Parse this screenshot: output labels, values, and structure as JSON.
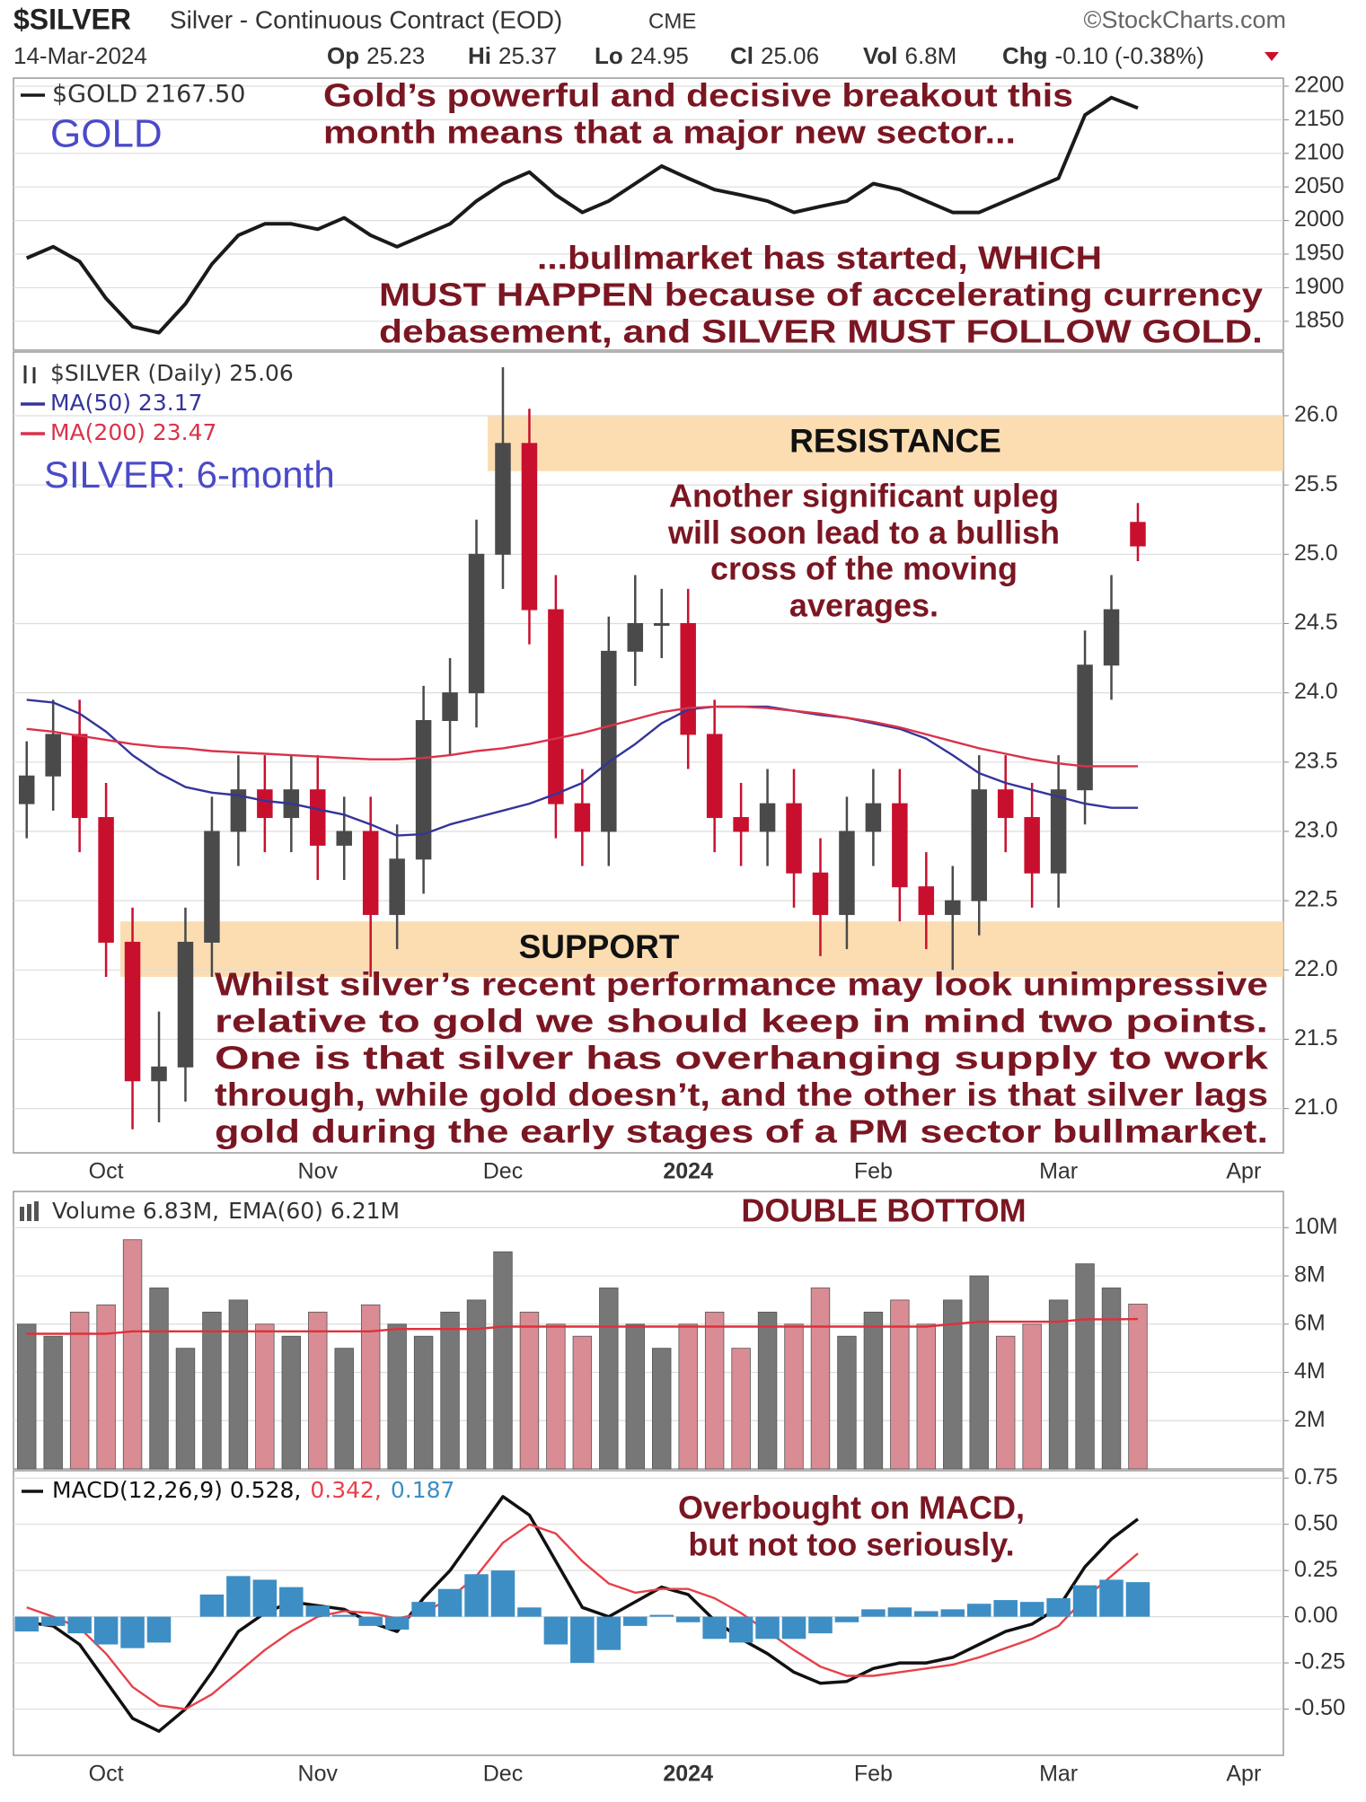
{
  "header": {
    "symbol": "$SILVER",
    "description": "Silver - Continuous Contract (EOD)",
    "exchange": "CME",
    "source": "©StockCharts.com",
    "date": "14-Mar-2024",
    "quote": [
      [
        "Op",
        "25.23"
      ],
      [
        "Hi",
        "25.37"
      ],
      [
        "Lo",
        "24.95"
      ],
      [
        "Cl",
        "25.06"
      ],
      [
        "Vol",
        "6.8M"
      ],
      [
        "Chg",
        "-0.10 (-0.38%)"
      ]
    ]
  },
  "chart_data": [
    {
      "type": "line",
      "title": "GOLD",
      "series": [
        {
          "name": "$GOLD 2167.50",
          "color": "#1a1a1a",
          "values": [
            1944,
            1961,
            1939,
            1884,
            1842,
            1833,
            1876,
            1935,
            1978,
            1995,
            1995,
            1987,
            2004,
            1978,
            1961,
            1978,
            1995,
            2029,
            2055,
            2072,
            2038,
            2012,
            2029,
            2055,
            2081,
            2063,
            2046,
            2038,
            2029,
            2012,
            2021,
            2029,
            2055,
            2046,
            2029,
            2012,
            2012,
            2029,
            2046,
            2063,
            2157,
            2183,
            2167.5,
            null,
            null,
            null,
            null,
            null
          ]
        }
      ],
      "ylim": [
        1807,
        2212
      ],
      "yticks": [
        1850,
        1900,
        1950,
        2000,
        2050,
        2100,
        2150,
        2200
      ],
      "grid": true,
      "annotations": [
        "Gold’s powerful and decisive breakout this",
        "month means that a major new sector...",
        "...bullmarket has started, WHICH",
        "MUST HAPPEN because of accelerating currency",
        "debasement, and SILVER MUST FOLLOW  GOLD."
      ]
    },
    {
      "type": "candlestick",
      "title": "SILVER: 6-month",
      "categories": [
        null,
        null,
        null,
        "Oct",
        null,
        null,
        null,
        null,
        null,
        null,
        null,
        "Nov",
        null,
        null,
        null,
        null,
        null,
        null,
        "Dec",
        null,
        null,
        null,
        null,
        null,
        null,
        "2024",
        null,
        null,
        null,
        null,
        null,
        null,
        "Feb",
        null,
        null,
        null,
        null,
        null,
        null,
        "Mar",
        null,
        null,
        null,
        null,
        null,
        null,
        "Apr",
        null
      ],
      "series": [
        {
          "name": "$SILVER (Daily) 25.06",
          "type": "candlestick",
          "up_color": "#4a4a4a",
          "down_color": "#c8102e",
          "open": [
            23.2,
            23.4,
            23.7,
            23.1,
            22.2,
            21.2,
            21.3,
            22.2,
            23.0,
            23.3,
            23.1,
            23.3,
            22.9,
            23.0,
            22.4,
            22.8,
            23.8,
            24.0,
            25.0,
            25.8,
            24.6,
            23.2,
            23.0,
            24.3,
            24.5,
            24.5,
            23.7,
            23.1,
            23.0,
            23.2,
            22.7,
            22.4,
            23.0,
            23.2,
            22.6,
            22.4,
            22.5,
            23.3,
            23.1,
            22.7,
            23.3,
            24.2,
            25.23,
            null,
            null,
            null,
            null,
            null
          ],
          "high": [
            23.65,
            23.95,
            23.95,
            23.35,
            22.45,
            21.7,
            22.45,
            23.25,
            23.55,
            23.55,
            23.55,
            23.55,
            23.25,
            23.25,
            23.05,
            24.05,
            24.25,
            25.25,
            26.35,
            26.05,
            24.85,
            23.45,
            24.55,
            24.85,
            24.75,
            24.75,
            23.95,
            23.35,
            23.45,
            23.45,
            22.95,
            23.25,
            23.45,
            23.45,
            22.85,
            22.75,
            23.55,
            23.55,
            23.35,
            23.55,
            24.45,
            24.85,
            25.37,
            null,
            null,
            null,
            null,
            null
          ],
          "low": [
            22.95,
            23.15,
            22.85,
            21.95,
            20.85,
            20.9,
            21.05,
            21.95,
            22.75,
            22.85,
            22.85,
            22.65,
            22.65,
            21.95,
            22.15,
            22.55,
            23.55,
            23.75,
            24.75,
            24.35,
            22.95,
            22.75,
            22.75,
            24.05,
            24.25,
            23.45,
            22.85,
            22.75,
            22.75,
            22.45,
            22.1,
            22.15,
            22.75,
            22.35,
            22.15,
            22.0,
            22.25,
            22.85,
            22.45,
            22.45,
            23.05,
            23.95,
            24.95,
            null,
            null,
            null,
            null,
            null
          ],
          "close": [
            23.4,
            23.7,
            23.1,
            22.2,
            21.2,
            21.3,
            22.2,
            23.0,
            23.3,
            23.1,
            23.3,
            22.9,
            23.0,
            22.4,
            22.8,
            23.8,
            24.0,
            25.0,
            25.8,
            24.6,
            23.2,
            23.0,
            24.3,
            24.5,
            24.5,
            23.7,
            23.1,
            23.0,
            23.2,
            22.7,
            22.4,
            23.0,
            23.2,
            22.6,
            22.4,
            22.5,
            23.3,
            23.1,
            22.7,
            23.3,
            24.2,
            24.6,
            25.06,
            null,
            null,
            null,
            null,
            null
          ]
        },
        {
          "name": "MA(50) 23.17",
          "type": "line",
          "color": "#34349a",
          "values": [
            23.95,
            23.93,
            23.85,
            23.72,
            23.55,
            23.42,
            23.32,
            23.28,
            23.26,
            23.22,
            23.2,
            23.16,
            23.12,
            23.05,
            22.97,
            22.98,
            23.05,
            23.1,
            23.15,
            23.2,
            23.27,
            23.35,
            23.5,
            23.63,
            23.78,
            23.88,
            23.9,
            23.9,
            23.9,
            23.87,
            23.84,
            23.82,
            23.78,
            23.74,
            23.67,
            23.55,
            23.42,
            23.35,
            23.3,
            23.25,
            23.2,
            23.17,
            23.17,
            null,
            null,
            null,
            null,
            null
          ]
        },
        {
          "name": "MA(200) 23.47",
          "type": "line",
          "color": "#d9334a",
          "values": [
            23.74,
            23.72,
            23.69,
            23.66,
            23.63,
            23.61,
            23.6,
            23.58,
            23.57,
            23.56,
            23.55,
            23.54,
            23.53,
            23.52,
            23.52,
            23.53,
            23.55,
            23.58,
            23.6,
            23.63,
            23.67,
            23.71,
            23.76,
            23.81,
            23.86,
            23.89,
            23.9,
            23.9,
            23.89,
            23.87,
            23.85,
            23.82,
            23.79,
            23.75,
            23.7,
            23.65,
            23.6,
            23.56,
            23.52,
            23.49,
            23.47,
            23.47,
            23.47,
            null,
            null,
            null,
            null,
            null
          ]
        }
      ],
      "ylim": [
        20.68,
        26.46
      ],
      "yticks": [
        {
          "value": 21,
          "label": "21.0"
        },
        21.5,
        {
          "value": 22,
          "label": "22.0"
        },
        22.5,
        {
          "value": 23,
          "label": "23.0"
        },
        23.5,
        {
          "value": 24,
          "label": "24.0"
        },
        24.5,
        {
          "value": 25,
          "label": "25.0"
        },
        25.5,
        {
          "value": 26,
          "label": "26.0"
        }
      ],
      "grid": true,
      "bands": [
        {
          "label": "RESISTANCE",
          "from": 25.6,
          "to": 26.0
        },
        {
          "label": "SUPPORT",
          "from": 21.95,
          "to": 22.35
        }
      ],
      "annotations": [
        "Another significant upleg",
        "will soon lead to a bullish",
        "cross of the moving",
        "averages.",
        "Whilst silver’s recent performance may look unimpressive",
        "relative to gold we should keep in mind two points.",
        "One is that silver has overhanging supply to work",
        "through, while gold doesn’t, and the other is that  silver lags",
        "gold during the early stages of a PM sector bullmarket."
      ]
    },
    {
      "type": "bar",
      "series": [
        {
          "name": "Volume 6.83M,",
          "type": "bar",
          "up_color": "#777777",
          "down_color": "#d98c94",
          "values": [
            6.0,
            5.5,
            6.5,
            6.8,
            9.5,
            7.5,
            5.0,
            6.5,
            7.0,
            6.0,
            5.5,
            6.5,
            5.0,
            6.8,
            6.0,
            5.5,
            6.5,
            7.0,
            9.0,
            6.5,
            6.0,
            5.5,
            7.5,
            6.0,
            5.0,
            6.0,
            6.5,
            5.0,
            6.5,
            6.0,
            7.5,
            5.5,
            6.5,
            7.0,
            6.0,
            7.0,
            8.0,
            5.5,
            6.0,
            7.0,
            8.5,
            7.5,
            6.83,
            null,
            null,
            null,
            null,
            null
          ]
        },
        {
          "name": "EMA(60) 6.21M",
          "type": "line",
          "color": "#e0303a",
          "values": [
            5.6,
            5.6,
            5.6,
            5.6,
            5.7,
            5.7,
            5.7,
            5.7,
            5.7,
            5.7,
            5.7,
            5.7,
            5.7,
            5.7,
            5.8,
            5.8,
            5.8,
            5.8,
            5.9,
            5.9,
            5.9,
            5.9,
            5.9,
            5.9,
            5.9,
            5.9,
            5.9,
            5.9,
            5.9,
            5.9,
            5.9,
            5.9,
            5.9,
            5.9,
            5.9,
            6.0,
            6.1,
            6.1,
            6.1,
            6.1,
            6.2,
            6.2,
            6.21,
            null,
            null,
            null,
            null,
            null
          ]
        }
      ],
      "ylim": [
        0,
        11.5
      ],
      "yticks": [
        {
          "value": 2,
          "label": "2M"
        },
        {
          "value": 4,
          "label": "4M"
        },
        {
          "value": 6,
          "label": "6M"
        },
        {
          "value": 8,
          "label": "8M"
        },
        {
          "value": 10,
          "label": "10M"
        }
      ],
      "grid": true,
      "annotations": [
        "DOUBLE BOTTOM"
      ]
    },
    {
      "type": "line",
      "categories": [
        null,
        null,
        null,
        "Oct",
        null,
        null,
        null,
        null,
        null,
        null,
        null,
        "Nov",
        null,
        null,
        null,
        null,
        null,
        null,
        "Dec",
        null,
        null,
        null,
        null,
        null,
        null,
        "2024",
        null,
        null,
        null,
        null,
        null,
        null,
        "Feb",
        null,
        null,
        null,
        null,
        null,
        null,
        "Mar",
        null,
        null,
        null,
        null,
        null,
        null,
        "Apr",
        null
      ],
      "series": [
        {
          "name": "MACD(12,26,9) 0.528,",
          "type": "line",
          "color": "#111111",
          "values": [
            -0.03,
            -0.05,
            -0.15,
            -0.35,
            -0.55,
            -0.62,
            -0.5,
            -0.3,
            -0.08,
            0.02,
            0.08,
            0.06,
            0.04,
            -0.03,
            -0.08,
            0.1,
            0.25,
            0.45,
            0.65,
            0.55,
            0.3,
            0.05,
            0.0,
            0.08,
            0.16,
            0.12,
            -0.02,
            -0.12,
            -0.2,
            -0.3,
            -0.36,
            -0.35,
            -0.28,
            -0.25,
            -0.25,
            -0.22,
            -0.15,
            -0.08,
            -0.04,
            0.05,
            0.27,
            0.42,
            0.528,
            null,
            null,
            null,
            null,
            null
          ]
        },
        {
          "name": "0.342,",
          "type": "line",
          "color": "#e8404a",
          "values": [
            0.05,
            0.0,
            -0.06,
            -0.2,
            -0.38,
            -0.48,
            -0.5,
            -0.42,
            -0.3,
            -0.18,
            -0.08,
            0.0,
            0.03,
            0.02,
            -0.01,
            0.02,
            0.1,
            0.22,
            0.4,
            0.5,
            0.45,
            0.3,
            0.18,
            0.13,
            0.15,
            0.15,
            0.1,
            0.02,
            -0.08,
            -0.18,
            -0.27,
            -0.32,
            -0.32,
            -0.3,
            -0.28,
            -0.26,
            -0.22,
            -0.17,
            -0.12,
            -0.05,
            0.1,
            0.22,
            0.342,
            null,
            null,
            null,
            null,
            null
          ]
        },
        {
          "name": "0.187",
          "type": "bar",
          "color": "#3d8ec4",
          "values": [
            -0.08,
            -0.05,
            -0.09,
            -0.15,
            -0.17,
            -0.14,
            0.0,
            0.12,
            0.22,
            0.2,
            0.16,
            0.06,
            0.01,
            -0.05,
            -0.07,
            0.08,
            0.15,
            0.23,
            0.25,
            0.05,
            -0.15,
            -0.25,
            -0.18,
            -0.05,
            0.01,
            -0.03,
            -0.12,
            -0.14,
            -0.12,
            -0.12,
            -0.09,
            -0.03,
            0.04,
            0.05,
            0.03,
            0.04,
            0.07,
            0.09,
            0.08,
            0.1,
            0.17,
            0.2,
            0.187,
            null,
            null,
            null,
            null,
            null
          ]
        }
      ],
      "ylim": [
        -0.75,
        0.79
      ],
      "yticks": [
        {
          "value": -0.5,
          "label": "-0.50"
        },
        -0.25,
        {
          "value": 0,
          "label": "0.00"
        },
        0.25,
        {
          "value": 0.5,
          "label": "0.50"
        },
        0.75
      ],
      "grid": true,
      "annotations": [
        "Overbought on MACD,",
        "but not too seriously."
      ]
    }
  ]
}
